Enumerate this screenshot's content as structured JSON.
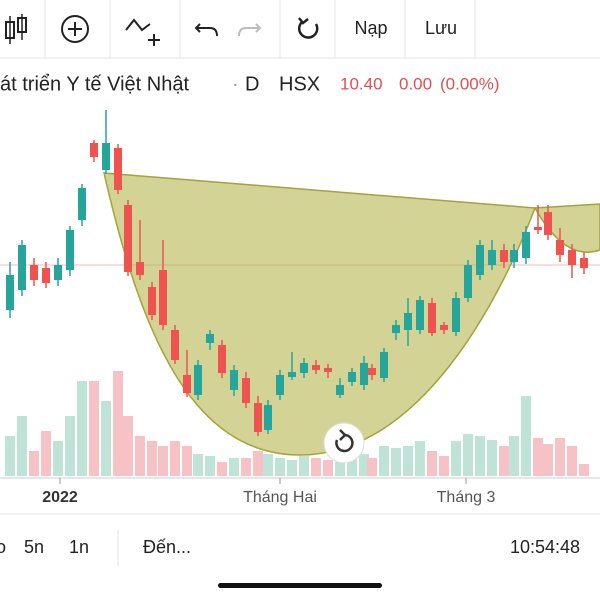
{
  "toolbar": {
    "load": "Nạp",
    "save": "Lưu"
  },
  "header": {
    "symbol_name": "át triển Y tế Việt Nhật",
    "separator": "·",
    "interval": "D",
    "exchange": "HSX",
    "price": "10.40",
    "change": "0.00",
    "change_percent": "(0.00%)"
  },
  "x_axis": {
    "labels": [
      "2022",
      "Tháng Hai",
      "Tháng 3"
    ]
  },
  "footer": {
    "ranges": [
      "o",
      "5n",
      "1n"
    ],
    "goto": "Đến...",
    "time": "10:54:48"
  }
}
